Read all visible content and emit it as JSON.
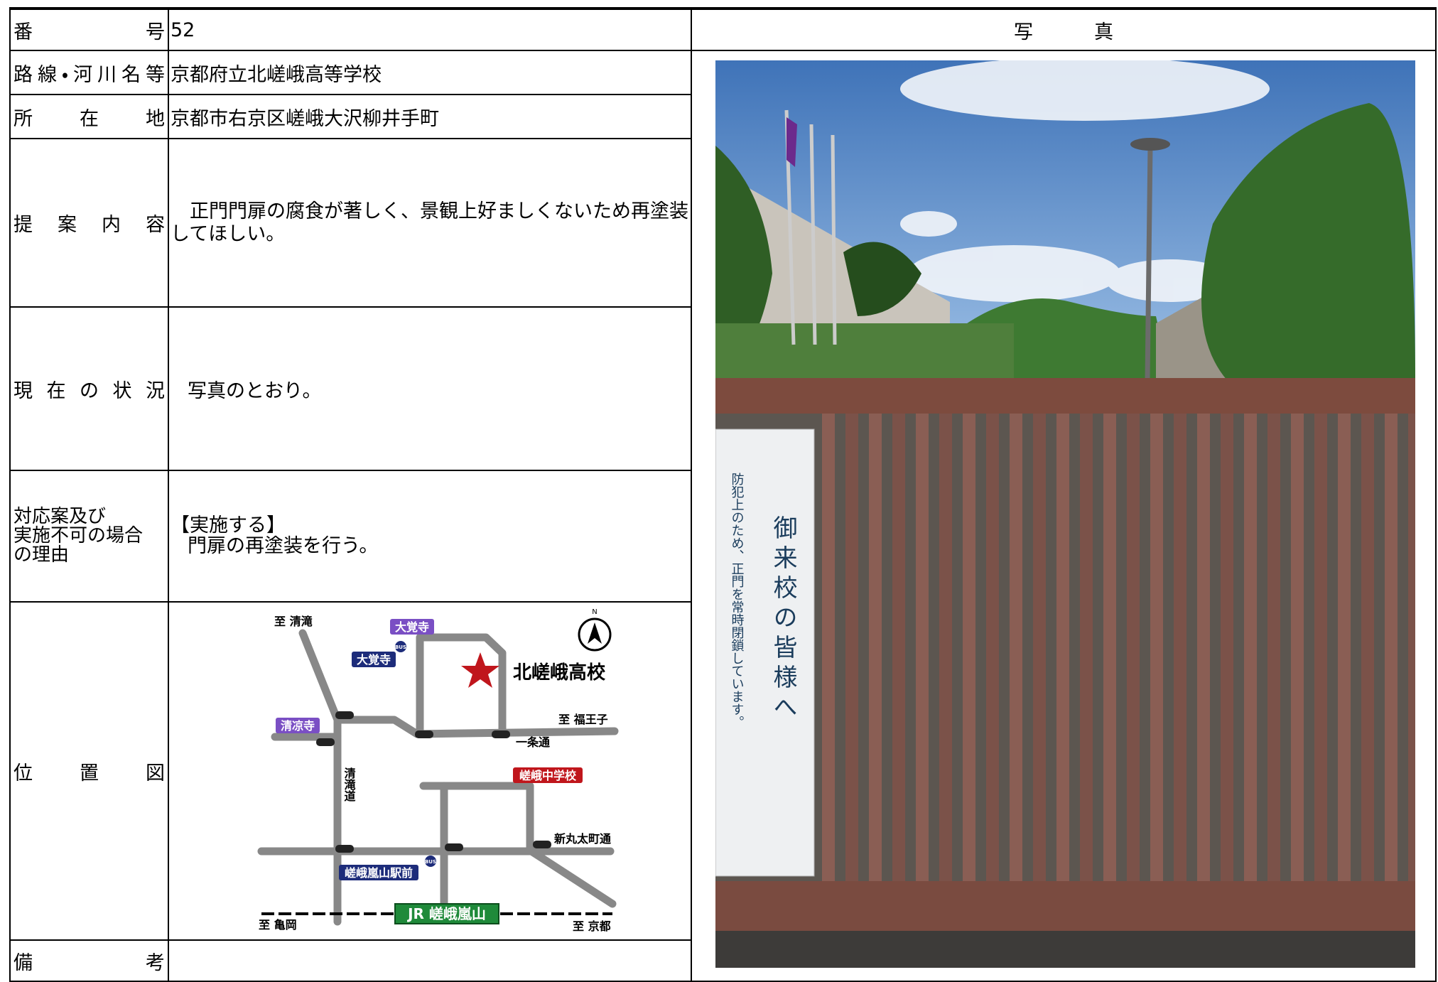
{
  "table": {
    "rows": [
      {
        "label": "番号",
        "value": "52"
      },
      {
        "label": "路線・河川名等",
        "value": "京都府立北嵯峨高等学校"
      },
      {
        "label": "所在地",
        "value": "京都市右京区嵯峨大沢柳井手町"
      },
      {
        "label": "提案内容",
        "value": "正門門扉の腐食が著しく、景観上好ましくないため再塗装してほしい。"
      },
      {
        "label": "現在の状況",
        "value": "写真のとおり。"
      },
      {
        "label_lines": [
          "対応案及び",
          "実施不可の場合",
          "の理由"
        ],
        "value_lines": [
          "【実施する】",
          "門扉の再塗装を行う。"
        ]
      },
      {
        "label": "位置図"
      },
      {
        "label": "備考"
      }
    ],
    "photo_heading": "写真"
  },
  "map": {
    "to_kiyotaki": "至 清滝",
    "daikakuji_temple": "大覚寺",
    "daikakuji_bus": "大覚寺",
    "school": "北嵯峨高校",
    "north": "N",
    "to_fukuoji": "至 福王子",
    "seiryoji": "清凉寺",
    "ichijo_dori": "一条通",
    "kiyotaki_michi": "清滝道",
    "saga_jhs": "嵯峨中学校",
    "shinmarutamachi": "新丸太町通",
    "station_bus": "嵯峨嵐山駅前",
    "bus_1": "BUS",
    "bus_2": "BUS",
    "jr_station": "JR 嵯峨嵐山",
    "to_kameoka": "至 亀岡",
    "to_kyoto": "至 京都"
  },
  "photo": {
    "sign_title": "御来校の皆様へ",
    "sign_note": "防犯上のため、正門を常時閉鎖しています。"
  }
}
